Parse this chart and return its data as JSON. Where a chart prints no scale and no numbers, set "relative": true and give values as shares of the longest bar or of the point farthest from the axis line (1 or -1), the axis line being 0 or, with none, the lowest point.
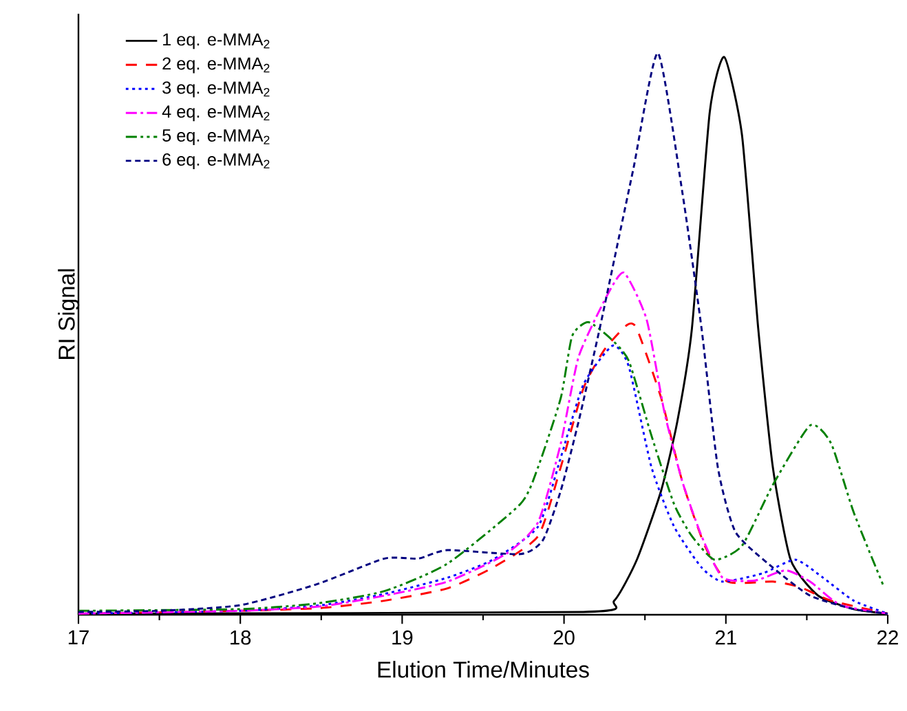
{
  "chart_data": {
    "type": "line",
    "relative": true,
    "xlabel": "Elution Time/Minutes",
    "ylabel": "RI Signal",
    "xlim": [
      17,
      22
    ],
    "xticks": [
      17,
      18,
      19,
      20,
      21,
      22
    ],
    "legend": "top left",
    "grid": false,
    "marker": "none",
    "series": [
      {
        "name": "1 eq. e-MMA$_{2}$",
        "color": "#000000",
        "line_style": "solid",
        "x": [
          17,
          20.12,
          20.31,
          20.45,
          20.6,
          20.7,
          20.79,
          20.9,
          20.99,
          21.1,
          21.2,
          21.29,
          21.4,
          21.57,
          21.79,
          22
        ],
        "values": [
          0.002,
          0.005,
          0.025,
          0.098,
          0.221,
          0.344,
          0.509,
          0.894,
          0.993,
          0.853,
          0.509,
          0.263,
          0.098,
          0.034,
          0.01,
          0.002
        ]
      },
      {
        "name": "2 eq. e-MMA$_{2}$",
        "color": "#ff0000",
        "line_style": "dashed",
        "x": [
          17,
          18,
          18.5,
          18.89,
          19.28,
          19.56,
          19.84,
          19.98,
          20.12,
          20.25,
          20.39,
          20.45,
          20.6,
          20.73,
          20.87,
          21.01,
          21.29,
          21.46,
          21.65,
          22
        ],
        "values": [
          0.002,
          0.007,
          0.012,
          0.025,
          0.047,
          0.084,
          0.14,
          0.263,
          0.403,
          0.472,
          0.516,
          0.509,
          0.386,
          0.238,
          0.123,
          0.059,
          0.059,
          0.049,
          0.025,
          0.002
        ]
      },
      {
        "name": "3 eq. e-MMA$_{2}$",
        "color": "#0000ff",
        "line_style": "dotted",
        "x": [
          17,
          18,
          18.5,
          18.89,
          19.28,
          19.56,
          19.84,
          19.98,
          20.12,
          20.3,
          20.4,
          20.54,
          20.68,
          20.85,
          20.98,
          21.23,
          21.43,
          21.6,
          21.79,
          22
        ],
        "values": [
          0.002,
          0.007,
          0.017,
          0.037,
          0.066,
          0.098,
          0.157,
          0.28,
          0.41,
          0.479,
          0.442,
          0.263,
          0.157,
          0.084,
          0.059,
          0.074,
          0.098,
          0.066,
          0.025,
          0.002
        ]
      },
      {
        "name": "4 eq. e-MMA$_{2}$",
        "color": "#ff00ff",
        "line_style": "dashdot",
        "x": [
          17,
          18,
          18.5,
          18.89,
          19.28,
          19.64,
          19.84,
          19.98,
          20.09,
          20.26,
          20.37,
          20.51,
          20.62,
          20.73,
          20.85,
          20.98,
          21.18,
          21.37,
          21.52,
          21.71,
          22
        ],
        "values": [
          0.002,
          0.007,
          0.015,
          0.034,
          0.059,
          0.108,
          0.165,
          0.305,
          0.459,
          0.565,
          0.609,
          0.526,
          0.361,
          0.238,
          0.14,
          0.066,
          0.061,
          0.079,
          0.059,
          0.017,
          0.002
        ]
      },
      {
        "name": "5 eq. e-MMA$_{2}$",
        "color": "#008000",
        "line_style": "dashdotdot",
        "x": [
          17,
          18,
          18.47,
          18.89,
          19.28,
          19.73,
          19.84,
          19.98,
          20.05,
          20.15,
          20.29,
          20.4,
          20.54,
          20.68,
          20.79,
          20.93,
          21.1,
          21.29,
          21.52,
          21.65,
          21.79,
          21.97
        ],
        "values": [
          0.007,
          0.01,
          0.02,
          0.042,
          0.091,
          0.197,
          0.263,
          0.386,
          0.496,
          0.521,
          0.491,
          0.452,
          0.319,
          0.197,
          0.14,
          0.098,
          0.123,
          0.231,
          0.337,
          0.305,
          0.182,
          0.054
        ]
      },
      {
        "name": "6 eq. e-MMA$_{2}$",
        "color": "#000080",
        "line_style": "shortdash",
        "x": [
          17,
          17.5,
          18,
          18.47,
          18.89,
          19.1,
          19.28,
          19.73,
          19.87,
          19.98,
          20.09,
          20.22,
          20.34,
          20.43,
          20.58,
          20.73,
          20.85,
          20.95,
          21.06,
          21.29,
          21.52,
          21.79,
          22
        ],
        "values": [
          0.005,
          0.007,
          0.017,
          0.054,
          0.1,
          0.1,
          0.115,
          0.108,
          0.133,
          0.221,
          0.344,
          0.509,
          0.673,
          0.796,
          1.0,
          0.754,
          0.509,
          0.263,
          0.147,
          0.084,
          0.034,
          0.01,
          0.002
        ]
      }
    ]
  }
}
